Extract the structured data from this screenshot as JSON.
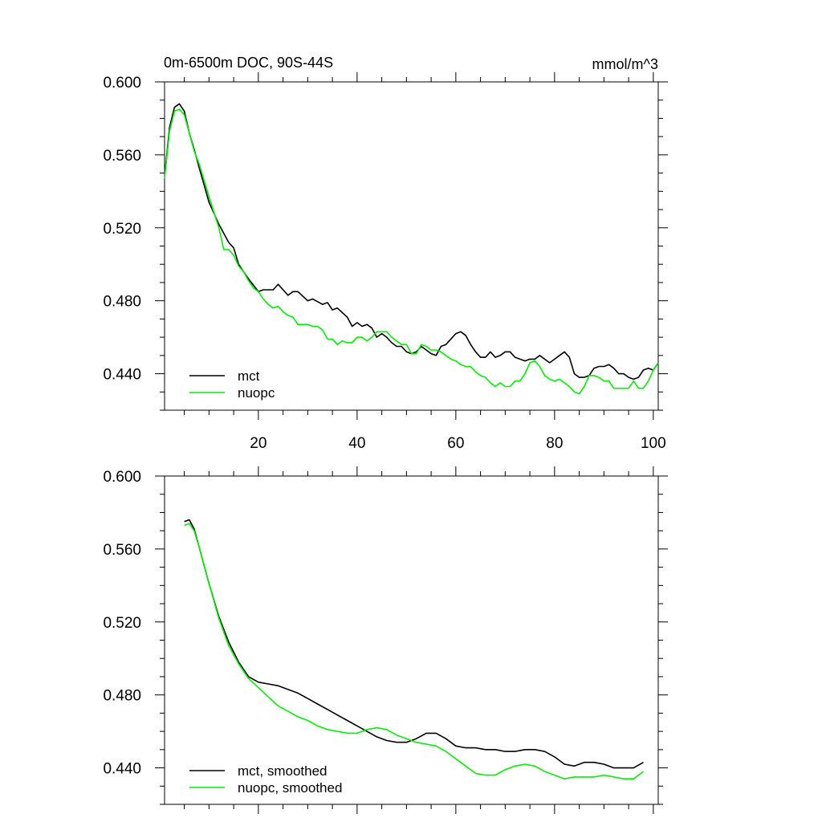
{
  "chart_data": [
    {
      "type": "line",
      "title": "0m-6500m DOC, 90S-44S",
      "units": "mmol/m^3",
      "xlim": [
        1,
        101
      ],
      "ylim": [
        0.42,
        0.6
      ],
      "x_ticks": [
        20,
        40,
        60,
        80,
        100
      ],
      "x_tick_labels": [
        "20",
        "40",
        "60",
        "80",
        "100"
      ],
      "y_ticks": [
        0.44,
        0.48,
        0.52,
        0.56,
        0.6
      ],
      "y_tick_labels": [
        "0.440",
        "0.480",
        "0.520",
        "0.560",
        "0.600"
      ],
      "grid": false,
      "legend_position": "bottom-left",
      "series": [
        {
          "name": "mct",
          "color": "#000000",
          "x": [
            1,
            2,
            3,
            4,
            5,
            6,
            7,
            8,
            10,
            12,
            14,
            15,
            16,
            17,
            18,
            20,
            21,
            23,
            24,
            26,
            27,
            28,
            30,
            31,
            33,
            34,
            35,
            36,
            38,
            39,
            40,
            41,
            42,
            43,
            44,
            45,
            46,
            47,
            48,
            49,
            50,
            51,
            52,
            53,
            54,
            55,
            56,
            57,
            58,
            60,
            61,
            62,
            63,
            64,
            65,
            66,
            67,
            68,
            69,
            70,
            71,
            72,
            73,
            74,
            75,
            76,
            77,
            78,
            79,
            80,
            81,
            82,
            83,
            84,
            85,
            86,
            87,
            88,
            89,
            90,
            91,
            92,
            93,
            94,
            95,
            96,
            97,
            98,
            99,
            100,
            101
          ],
          "y": [
            0.548,
            0.575,
            0.586,
            0.588,
            0.584,
            0.572,
            0.563,
            0.553,
            0.534,
            0.522,
            0.512,
            0.509,
            0.5,
            0.496,
            0.492,
            0.485,
            0.486,
            0.486,
            0.489,
            0.483,
            0.485,
            0.485,
            0.48,
            0.481,
            0.478,
            0.479,
            0.475,
            0.476,
            0.471,
            0.466,
            0.468,
            0.466,
            0.467,
            0.465,
            0.46,
            0.462,
            0.46,
            0.457,
            0.455,
            0.455,
            0.452,
            0.451,
            0.452,
            0.455,
            0.453,
            0.451,
            0.45,
            0.455,
            0.456,
            0.462,
            0.463,
            0.461,
            0.456,
            0.452,
            0.449,
            0.449,
            0.452,
            0.449,
            0.45,
            0.452,
            0.452,
            0.449,
            0.448,
            0.447,
            0.448,
            0.448,
            0.45,
            0.448,
            0.446,
            0.448,
            0.45,
            0.452,
            0.449,
            0.44,
            0.438,
            0.438,
            0.439,
            0.443,
            0.444,
            0.444,
            0.445,
            0.443,
            0.44,
            0.44,
            0.438,
            0.437,
            0.438,
            0.442,
            0.443,
            0.442,
            0.446
          ]
        },
        {
          "name": "nuopc",
          "color": "#00ee00",
          "x": [
            1,
            2,
            3,
            4,
            5,
            6,
            7,
            8,
            10,
            12,
            13,
            14,
            15,
            16,
            17,
            18,
            19,
            20,
            21,
            22,
            23,
            24,
            25,
            26,
            27,
            28,
            29,
            30,
            31,
            32,
            33,
            34,
            35,
            36,
            37,
            38,
            39,
            40,
            41,
            42,
            43,
            44,
            45,
            46,
            47,
            48,
            49,
            50,
            51,
            52,
            53,
            54,
            55,
            56,
            57,
            58,
            59,
            60,
            61,
            62,
            63,
            64,
            65,
            66,
            67,
            68,
            69,
            70,
            71,
            72,
            73,
            74,
            75,
            76,
            77,
            78,
            79,
            80,
            81,
            82,
            83,
            84,
            85,
            86,
            87,
            88,
            89,
            90,
            91,
            92,
            93,
            94,
            95,
            96,
            97,
            98,
            99,
            100,
            101
          ],
          "y": [
            0.547,
            0.573,
            0.584,
            0.585,
            0.582,
            0.572,
            0.562,
            0.555,
            0.537,
            0.52,
            0.508,
            0.508,
            0.505,
            0.499,
            0.496,
            0.491,
            0.487,
            0.485,
            0.481,
            0.478,
            0.476,
            0.477,
            0.474,
            0.472,
            0.471,
            0.467,
            0.467,
            0.467,
            0.466,
            0.466,
            0.464,
            0.459,
            0.459,
            0.456,
            0.458,
            0.457,
            0.457,
            0.46,
            0.46,
            0.458,
            0.46,
            0.463,
            0.463,
            0.463,
            0.46,
            0.458,
            0.456,
            0.456,
            0.451,
            0.451,
            0.456,
            0.455,
            0.453,
            0.453,
            0.452,
            0.45,
            0.448,
            0.447,
            0.445,
            0.444,
            0.444,
            0.441,
            0.439,
            0.438,
            0.435,
            0.433,
            0.435,
            0.433,
            0.433,
            0.436,
            0.436,
            0.44,
            0.446,
            0.447,
            0.444,
            0.439,
            0.437,
            0.436,
            0.437,
            0.435,
            0.433,
            0.43,
            0.429,
            0.433,
            0.439,
            0.439,
            0.438,
            0.436,
            0.436,
            0.432,
            0.432,
            0.432,
            0.432,
            0.436,
            0.432,
            0.432,
            0.436,
            0.442,
            0.446
          ]
        }
      ]
    },
    {
      "type": "line",
      "xlim": [
        1,
        101
      ],
      "ylim": [
        0.42,
        0.6
      ],
      "x_ticks": [
        20,
        40,
        60,
        80,
        100
      ],
      "x_tick_labels": [],
      "y_ticks": [
        0.44,
        0.48,
        0.52,
        0.56,
        0.6
      ],
      "y_tick_labels": [
        "0.440",
        "0.480",
        "0.520",
        "0.560",
        "0.600"
      ],
      "grid": false,
      "legend_position": "bottom-left",
      "series": [
        {
          "name": "mct, smoothed",
          "color": "#000000",
          "x": [
            5,
            6,
            7,
            8,
            10,
            12,
            14,
            16,
            18,
            20,
            22,
            24,
            26,
            28,
            30,
            32,
            34,
            36,
            38,
            40,
            42,
            44,
            46,
            48,
            50,
            52,
            54,
            56,
            58,
            60,
            62,
            64,
            66,
            68,
            70,
            72,
            74,
            76,
            78,
            80,
            82,
            84,
            86,
            88,
            90,
            92,
            94,
            96,
            98
          ],
          "y": [
            0.575,
            0.576,
            0.571,
            0.561,
            0.541,
            0.523,
            0.509,
            0.498,
            0.49,
            0.487,
            0.486,
            0.485,
            0.483,
            0.481,
            0.478,
            0.475,
            0.472,
            0.469,
            0.466,
            0.463,
            0.46,
            0.457,
            0.455,
            0.454,
            0.454,
            0.456,
            0.459,
            0.459,
            0.456,
            0.452,
            0.451,
            0.451,
            0.45,
            0.45,
            0.449,
            0.449,
            0.45,
            0.45,
            0.449,
            0.446,
            0.442,
            0.441,
            0.443,
            0.443,
            0.442,
            0.44,
            0.44,
            0.44,
            0.443
          ]
        },
        {
          "name": "nuopc, smoothed",
          "color": "#00ee00",
          "x": [
            5,
            6,
            7,
            8,
            10,
            12,
            14,
            16,
            18,
            20,
            22,
            24,
            26,
            28,
            30,
            32,
            34,
            36,
            38,
            40,
            42,
            44,
            46,
            48,
            50,
            52,
            54,
            56,
            58,
            60,
            62,
            64,
            66,
            68,
            70,
            72,
            74,
            76,
            78,
            80,
            82,
            84,
            86,
            88,
            90,
            92,
            94,
            96,
            98
          ],
          "y": [
            0.573,
            0.574,
            0.57,
            0.561,
            0.541,
            0.522,
            0.507,
            0.497,
            0.489,
            0.484,
            0.479,
            0.474,
            0.471,
            0.468,
            0.466,
            0.463,
            0.461,
            0.46,
            0.459,
            0.459,
            0.461,
            0.462,
            0.461,
            0.458,
            0.456,
            0.454,
            0.453,
            0.452,
            0.449,
            0.445,
            0.441,
            0.437,
            0.436,
            0.436,
            0.439,
            0.441,
            0.442,
            0.441,
            0.438,
            0.436,
            0.434,
            0.435,
            0.435,
            0.435,
            0.436,
            0.435,
            0.434,
            0.434,
            0.438
          ]
        }
      ]
    }
  ]
}
